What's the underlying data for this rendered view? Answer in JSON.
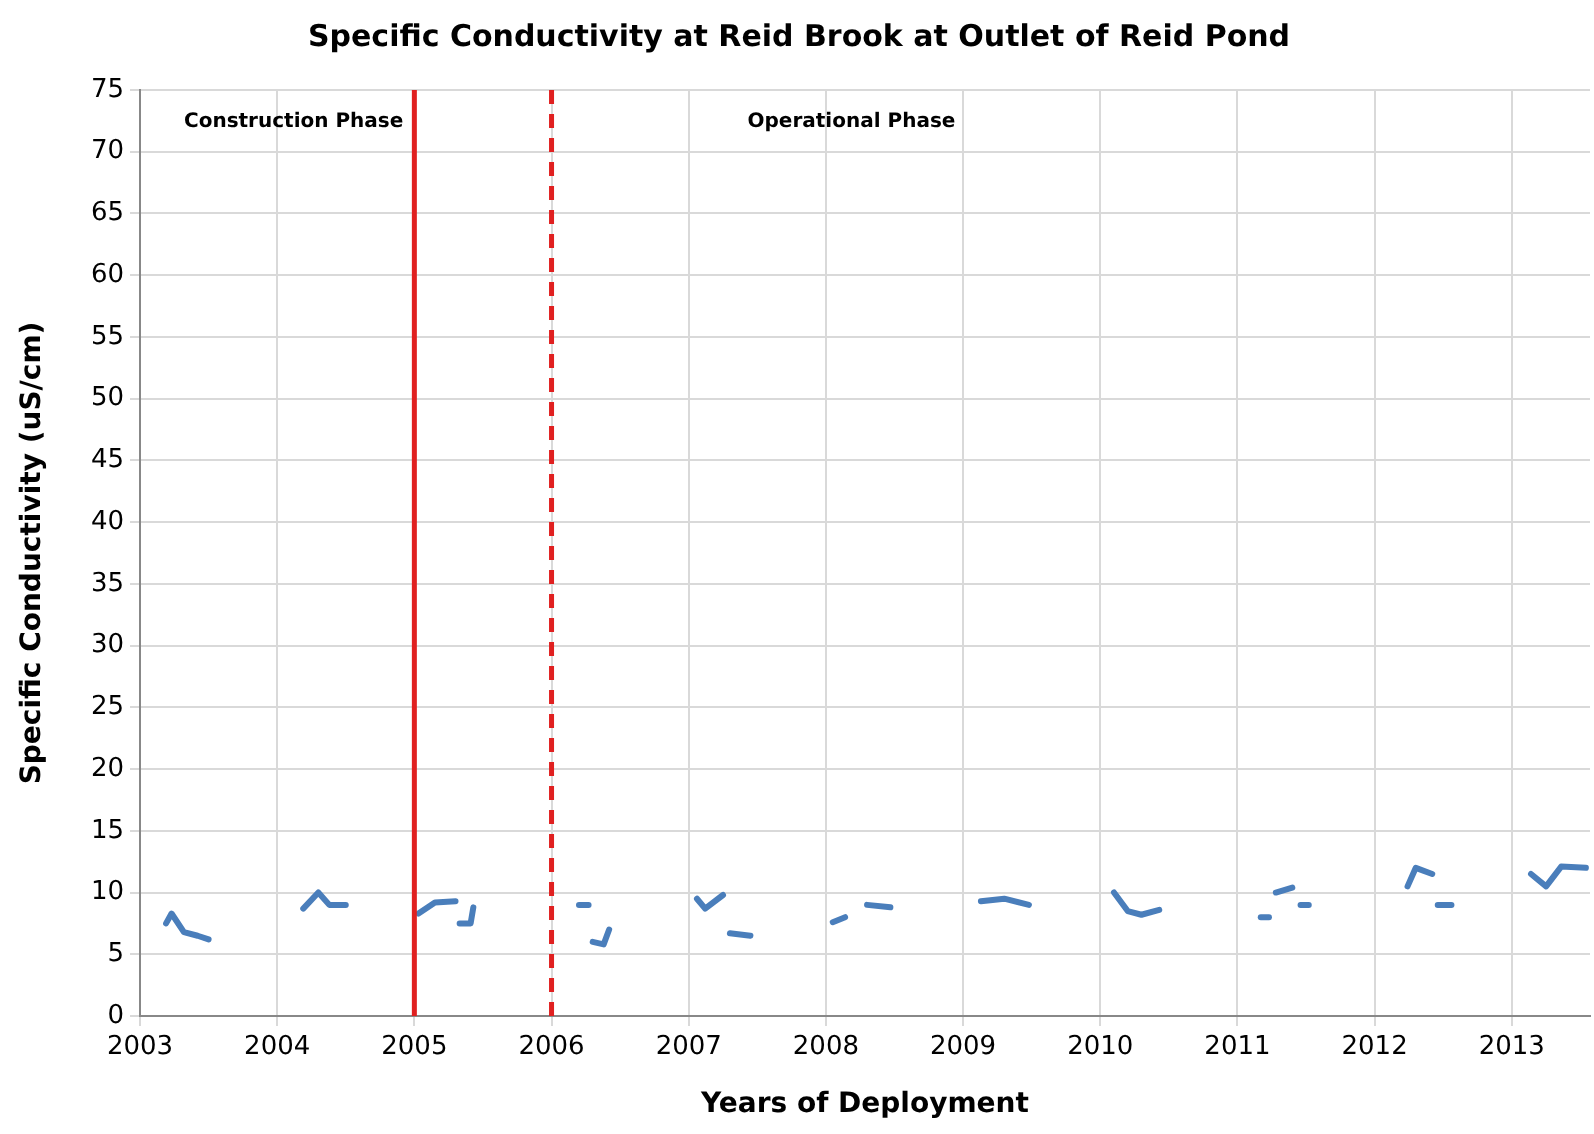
{
  "chart_data": {
    "type": "line",
    "title": "Specific Conductivity at Reid Brook at Outlet of Reid Pond",
    "xlabel": "Years of Deployment",
    "ylabel": "Specific Conductivity (uS/cm)",
    "series": [
      {
        "color": "#4a7ebb",
        "x": [
          2003.19,
          2003.23,
          2003.32,
          2003.42,
          2003.5
        ],
        "values": [
          7.5,
          8.3,
          6.8,
          6.5,
          6.2
        ]
      },
      {
        "color": "#4a7ebb",
        "x": [
          2004.19,
          2004.3,
          2004.38,
          2004.5
        ],
        "values": [
          8.7,
          10,
          9,
          9
        ]
      },
      {
        "color": "#4a7ebb",
        "x": [
          2005.03,
          2005.15,
          2005.3
        ],
        "values": [
          8.3,
          9.2,
          9.3
        ]
      },
      {
        "color": "#4a7ebb",
        "x": [
          2005.33,
          2005.41,
          2005.43
        ],
        "values": [
          7.5,
          7.5,
          8.8
        ]
      },
      {
        "color": "#4a7ebb",
        "x": [
          2006.2,
          2006.27
        ],
        "values": [
          9,
          9
        ]
      },
      {
        "color": "#4a7ebb",
        "x": [
          2006.3,
          2006.38,
          2006.42
        ],
        "values": [
          6,
          5.8,
          7
        ]
      },
      {
        "color": "#4a7ebb",
        "x": [
          2007.06,
          2007.12,
          2007.25
        ],
        "values": [
          9.5,
          8.7,
          9.8
        ]
      },
      {
        "color": "#4a7ebb",
        "x": [
          2007.3,
          2007.45
        ],
        "values": [
          6.7,
          6.5
        ]
      },
      {
        "color": "#4a7ebb",
        "x": [
          2008.05,
          2008.14
        ],
        "values": [
          7.6,
          8
        ]
      },
      {
        "color": "#4a7ebb",
        "x": [
          2008.3,
          2008.47
        ],
        "values": [
          9,
          8.8
        ]
      },
      {
        "color": "#4a7ebb",
        "x": [
          2009.13,
          2009.3,
          2009.48
        ],
        "values": [
          9.3,
          9.5,
          9
        ]
      },
      {
        "color": "#4a7ebb",
        "x": [
          2010.1,
          2010.2,
          2010.3,
          2010.43
        ],
        "values": [
          10,
          8.5,
          8.2,
          8.6
        ]
      },
      {
        "color": "#4a7ebb",
        "x": [
          2011.17,
          2011.23
        ],
        "values": [
          8,
          8
        ]
      },
      {
        "color": "#4a7ebb",
        "x": [
          2011.28,
          2011.4
        ],
        "values": [
          10,
          10.4
        ]
      },
      {
        "color": "#4a7ebb",
        "x": [
          2011.46,
          2011.52
        ],
        "values": [
          9,
          9
        ]
      },
      {
        "color": "#4a7ebb",
        "x": [
          2012.24,
          2012.3,
          2012.42
        ],
        "values": [
          10.5,
          12,
          11.5
        ]
      },
      {
        "color": "#4a7ebb",
        "x": [
          2012.46,
          2012.56
        ],
        "values": [
          9,
          9
        ]
      },
      {
        "color": "#4a7ebb",
        "x": [
          2013.14,
          2013.25,
          2013.36,
          2013.54
        ],
        "values": [
          11.5,
          10.5,
          12.1,
          12
        ]
      }
    ],
    "xlim": [
      2003,
      2013.57
    ],
    "xticks": [
      2003,
      2004,
      2005,
      2006,
      2007,
      2008,
      2009,
      2010,
      2011,
      2012,
      2013
    ],
    "ylim": [
      0,
      75
    ],
    "yticks": [
      0,
      5,
      10,
      15,
      20,
      25,
      30,
      35,
      40,
      45,
      50,
      55,
      60,
      65,
      70,
      75
    ],
    "grid": true,
    "legend": false,
    "marker": "none",
    "line_style": "solid",
    "ref_lines": [
      {
        "axis": "x",
        "value": 2005,
        "color": "#e02020",
        "line_style": "solid"
      },
      {
        "axis": "x",
        "value": 2006,
        "color": "#e02020",
        "line_style": "dashed"
      }
    ],
    "annotations": [
      "Construction Phase",
      "Operational Phase"
    ]
  }
}
